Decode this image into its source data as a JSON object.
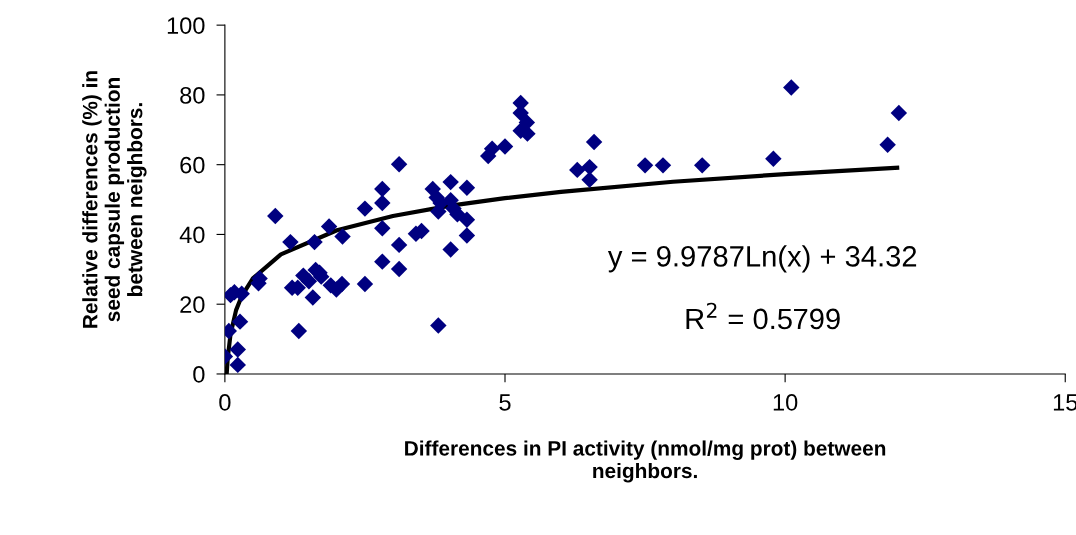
{
  "chart_data": {
    "type": "scatter",
    "xlabel": "Differences in PI activity (nmol/mg prot) between\nneighbors.",
    "ylabel": "Relative differences (%) in\nseed capsule production\nbetween neighbors.",
    "xlim": [
      0,
      15
    ],
    "xticks": [
      0,
      5,
      10,
      15
    ],
    "ylim": [
      0,
      100
    ],
    "yticks": [
      0,
      20,
      40,
      60,
      80,
      100
    ],
    "grid": false,
    "legend": false,
    "annotations": [
      "y = 9.9787Ln(x) + 34.32",
      "R$^{2}$ = 0.5799"
    ],
    "series": [
      {
        "type": "scatter",
        "color": "#000080",
        "marker": "diamond",
        "x": [
          0.0,
          0.23,
          0.23,
          0.07,
          0.27,
          0.1,
          0.17,
          0.3,
          0.6,
          0.62,
          0.9,
          1.17,
          1.2,
          1.3,
          1.32,
          1.4,
          1.5,
          1.57,
          1.6,
          1.62,
          1.69,
          1.72,
          1.86,
          1.89,
          1.99,
          2.09,
          2.1,
          2.5,
          2.5,
          2.81,
          2.81,
          2.81,
          2.81,
          3.11,
          3.11,
          3.11,
          3.41,
          3.51,
          3.71,
          3.78,
          3.85,
          3.81,
          3.81,
          4.03,
          4.03,
          4.08,
          4.03,
          4.15,
          4.32,
          4.32,
          4.32,
          4.7,
          4.77,
          5.0,
          5.28,
          5.28,
          5.39,
          5.28,
          5.4,
          6.29,
          6.51,
          6.51,
          6.59,
          7.5,
          7.82,
          8.52,
          9.79,
          10.11,
          11.83,
          12.03
        ],
        "values": [
          5,
          2.6,
          7,
          12.3,
          15,
          22.6,
          23.4,
          23,
          26,
          27.4,
          45.3,
          37.8,
          24.7,
          24.7,
          12.3,
          28.2,
          26.6,
          21.9,
          37.8,
          29.8,
          29,
          27.9,
          42.3,
          25.4,
          24.2,
          25.8,
          39.4,
          47.4,
          25.8,
          53,
          49,
          41.8,
          32.2,
          60.1,
          37,
          30.1,
          40.2,
          41,
          53,
          50.6,
          49,
          46.6,
          13.9,
          55,
          49.8,
          47.4,
          35.7,
          45.8,
          53.4,
          44.2,
          39.7,
          62.5,
          64.6,
          65.2,
          77.7,
          74.8,
          72.1,
          69.7,
          68.9,
          58.5,
          59.3,
          55.7,
          66.5,
          59.8,
          59.8,
          59.8,
          61.7,
          82.1,
          65.7,
          74.8
        ]
      },
      {
        "type": "line",
        "color": "#000000",
        "marker": "none",
        "line_style": "solid",
        "x": [
          0.032,
          0.05,
          0.1,
          0.2,
          0.3,
          0.5,
          1,
          2,
          3,
          4,
          5,
          6,
          8,
          10,
          12
        ],
        "values": [
          0,
          4.4,
          11.3,
          18.3,
          22.3,
          27.4,
          34.3,
          41.2,
          45.3,
          48.2,
          50.4,
          52.2,
          55.1,
          57.3,
          59.1
        ]
      }
    ]
  }
}
